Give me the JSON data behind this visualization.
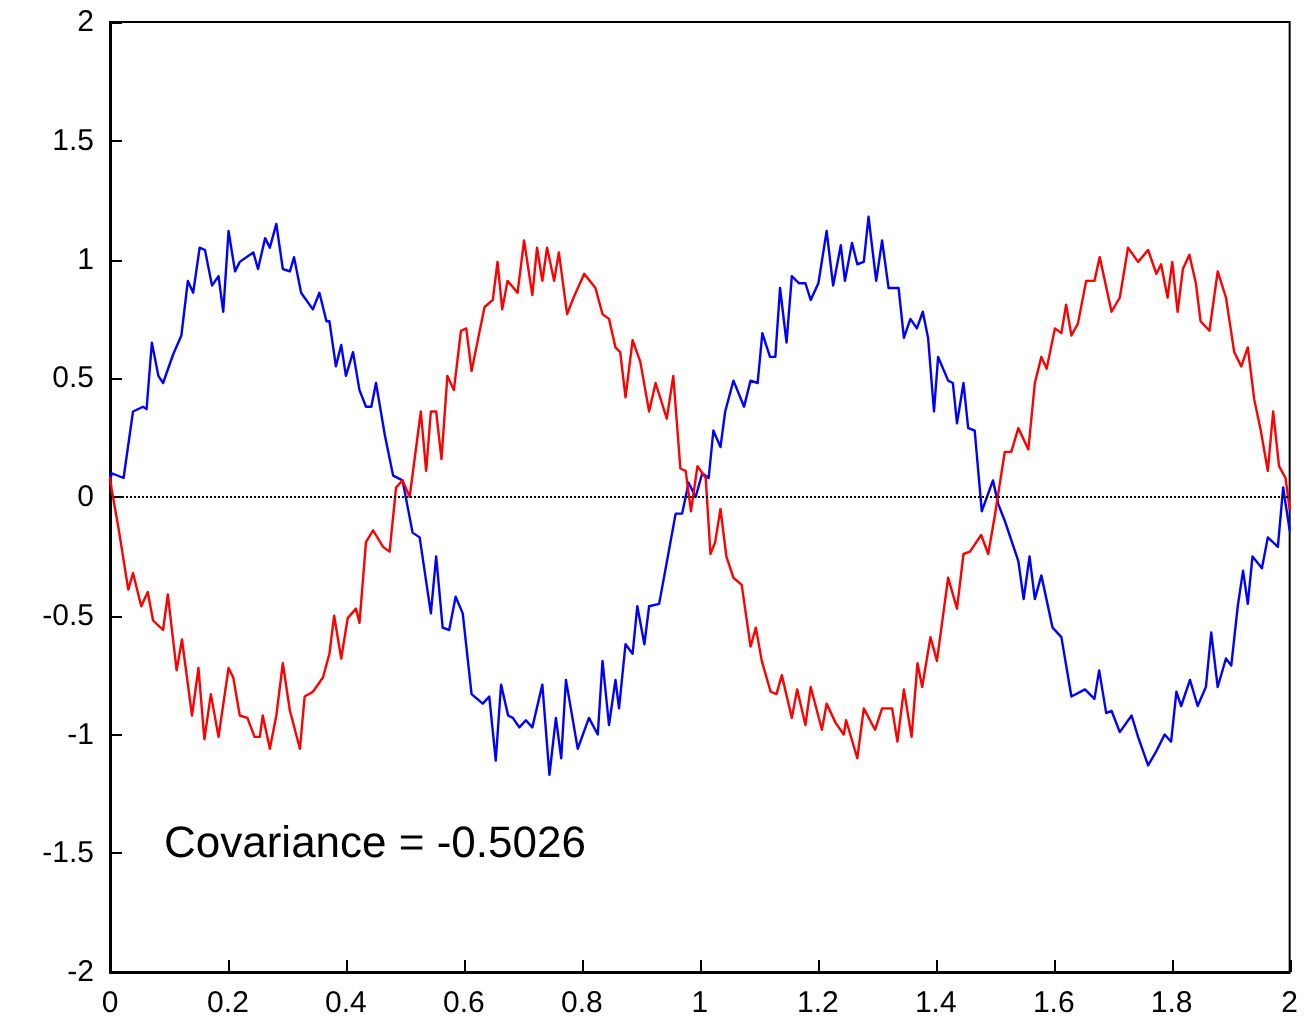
{
  "chart_data": {
    "type": "line",
    "xlim": [
      0,
      2
    ],
    "ylim": [
      -2,
      2
    ],
    "xticks": [
      0,
      0.2,
      0.4,
      0.6,
      0.8,
      1,
      1.2,
      1.4,
      1.6,
      1.8,
      2
    ],
    "yticks": [
      -2,
      -1.5,
      -1,
      -0.5,
      0,
      0.5,
      1,
      1.5,
      2
    ],
    "grid": false,
    "marker": "none",
    "line_style": "solid",
    "ref_lines": [
      {
        "axis": "y",
        "value": 0,
        "label": null,
        "color": "#000000",
        "line_style": "dotted"
      }
    ],
    "annotations": [
      "Covariance = -0.5026"
    ],
    "series": [
      {
        "color": "#0000ff",
        "x": [
          0,
          0.003,
          0.023,
          0.039,
          0.056,
          0.062,
          0.071,
          0.082,
          0.09,
          0.107,
          0.121,
          0.132,
          0.141,
          0.152,
          0.161,
          0.173,
          0.184,
          0.192,
          0.201,
          0.212,
          0.22,
          0.243,
          0.251,
          0.263,
          0.271,
          0.282,
          0.293,
          0.305,
          0.312,
          0.324,
          0.344,
          0.355,
          0.367,
          0.372,
          0.383,
          0.392,
          0.4,
          0.412,
          0.423,
          0.434,
          0.443,
          0.451,
          0.466,
          0.48,
          0.496,
          0.513,
          0.525,
          0.544,
          0.553,
          0.564,
          0.575,
          0.586,
          0.598,
          0.613,
          0.632,
          0.643,
          0.654,
          0.663,
          0.675,
          0.683,
          0.694,
          0.705,
          0.716,
          0.733,
          0.745,
          0.756,
          0.765,
          0.773,
          0.793,
          0.812,
          0.827,
          0.835,
          0.846,
          0.857,
          0.863,
          0.874,
          0.886,
          0.894,
          0.906,
          0.914,
          0.931,
          0.948,
          0.959,
          0.97,
          0.981,
          0.993,
          1.004,
          1.015,
          1.023,
          1.035,
          1.043,
          1.057,
          1.075,
          1.086,
          1.098,
          1.106,
          1.119,
          1.128,
          1.136,
          1.147,
          1.156,
          1.168,
          1.179,
          1.188,
          1.201,
          1.215,
          1.226,
          1.239,
          1.246,
          1.258,
          1.267,
          1.278,
          1.286,
          1.299,
          1.309,
          1.32,
          1.337,
          1.346,
          1.357,
          1.368,
          1.378,
          1.387,
          1.397,
          1.404,
          1.421,
          1.429,
          1.436,
          1.447,
          1.455,
          1.466,
          1.478,
          1.497,
          1.506,
          1.517,
          1.54,
          1.549,
          1.559,
          1.568,
          1.579,
          1.598,
          1.613,
          1.63,
          1.653,
          1.669,
          1.677,
          1.689,
          1.698,
          1.712,
          1.732,
          1.743,
          1.76,
          1.774,
          1.788,
          1.799,
          1.808,
          1.816,
          1.831,
          1.844,
          1.858,
          1.867,
          1.878,
          1.892,
          1.901,
          1.912,
          1.921,
          1.929,
          1.937,
          1.953,
          1.963,
          1.98,
          1.989,
          2
        ],
        "values": [
          0.07,
          0.1,
          0.08,
          0.36,
          0.38,
          0.37,
          0.65,
          0.51,
          0.48,
          0.6,
          0.68,
          0.91,
          0.86,
          1.05,
          1.04,
          0.89,
          0.93,
          0.78,
          1.12,
          0.95,
          0.99,
          1.03,
          0.96,
          1.09,
          1.05,
          1.15,
          0.96,
          0.95,
          1.01,
          0.86,
          0.79,
          0.86,
          0.74,
          0.74,
          0.55,
          0.64,
          0.51,
          0.61,
          0.45,
          0.38,
          0.38,
          0.48,
          0.26,
          0.09,
          0.07,
          -0.15,
          -0.17,
          -0.49,
          -0.25,
          -0.55,
          -0.56,
          -0.42,
          -0.49,
          -0.83,
          -0.87,
          -0.84,
          -1.11,
          -0.79,
          -0.92,
          -0.93,
          -0.97,
          -0.94,
          -0.97,
          -0.79,
          -1.17,
          -0.93,
          -1.1,
          -0.77,
          -1.06,
          -0.93,
          -1,
          -0.69,
          -0.96,
          -0.77,
          -0.89,
          -0.62,
          -0.66,
          -0.46,
          -0.62,
          -0.46,
          -0.45,
          -0.22,
          -0.07,
          -0.07,
          0.06,
          0,
          0.1,
          0.08,
          0.28,
          0.21,
          0.36,
          0.49,
          0.38,
          0.49,
          0.48,
          0.69,
          0.59,
          0.59,
          0.88,
          0.65,
          0.93,
          0.9,
          0.9,
          0.83,
          0.9,
          1.12,
          0.89,
          1.06,
          0.91,
          1.07,
          0.98,
          0.99,
          1.18,
          0.91,
          1.08,
          0.88,
          0.88,
          0.67,
          0.75,
          0.71,
          0.78,
          0.67,
          0.36,
          0.59,
          0.49,
          0.48,
          0.31,
          0.48,
          0.29,
          0.28,
          -0.06,
          0.07,
          -0.03,
          -0.1,
          -0.27,
          -0.43,
          -0.25,
          -0.43,
          -0.33,
          -0.55,
          -0.59,
          -0.84,
          -0.81,
          -0.85,
          -0.73,
          -0.91,
          -0.9,
          -0.99,
          -0.92,
          -1.01,
          -1.13,
          -1.07,
          -1,
          -1.03,
          -0.82,
          -0.88,
          -0.77,
          -0.88,
          -0.8,
          -0.57,
          -0.8,
          -0.68,
          -0.71,
          -0.46,
          -0.31,
          -0.45,
          -0.25,
          -0.3,
          -0.17,
          -0.21,
          0.04,
          -0.14
        ]
      },
      {
        "color": "#ff0000",
        "x": [
          0,
          0.003,
          0.015,
          0.031,
          0.039,
          0.053,
          0.064,
          0.073,
          0.09,
          0.098,
          0.113,
          0.122,
          0.139,
          0.15,
          0.16,
          0.171,
          0.184,
          0.201,
          0.209,
          0.22,
          0.233,
          0.245,
          0.254,
          0.259,
          0.271,
          0.282,
          0.293,
          0.305,
          0.322,
          0.33,
          0.344,
          0.361,
          0.372,
          0.38,
          0.392,
          0.403,
          0.417,
          0.423,
          0.434,
          0.446,
          0.463,
          0.474,
          0.485,
          0.496,
          0.508,
          0.527,
          0.536,
          0.544,
          0.553,
          0.562,
          0.572,
          0.583,
          0.595,
          0.604,
          0.613,
          0.626,
          0.635,
          0.649,
          0.657,
          0.665,
          0.674,
          0.691,
          0.702,
          0.716,
          0.724,
          0.733,
          0.741,
          0.753,
          0.761,
          0.775,
          0.786,
          0.804,
          0.823,
          0.835,
          0.846,
          0.857,
          0.865,
          0.874,
          0.886,
          0.899,
          0.914,
          0.925,
          0.944,
          0.955,
          0.967,
          0.976,
          0.985,
          0.996,
          1.01,
          1.018,
          1.026,
          1.035,
          1.045,
          1.057,
          1.071,
          1.086,
          1.095,
          1.105,
          1.12,
          1.13,
          1.139,
          1.156,
          1.165,
          1.179,
          1.188,
          1.207,
          1.215,
          1.23,
          1.244,
          1.248,
          1.267,
          1.278,
          1.297,
          1.309,
          1.326,
          1.335,
          1.346,
          1.359,
          1.369,
          1.377,
          1.391,
          1.402,
          1.421,
          1.436,
          1.447,
          1.458,
          1.477,
          1.489,
          1.5,
          1.517,
          1.528,
          1.54,
          1.557,
          1.568,
          1.579,
          1.588,
          1.602,
          1.613,
          1.621,
          1.63,
          1.641,
          1.655,
          1.669,
          1.678,
          1.698,
          1.712,
          1.726,
          1.743,
          1.76,
          1.774,
          1.782,
          1.793,
          1.801,
          1.81,
          1.819,
          1.83,
          1.841,
          1.849,
          1.864,
          1.878,
          1.892,
          1.906,
          1.918,
          1.929,
          1.94,
          1.951,
          1.963,
          1.972,
          1.982,
          1.993,
          2
        ],
        "values": [
          0.08,
          0.03,
          -0.14,
          -0.39,
          -0.32,
          -0.46,
          -0.4,
          -0.52,
          -0.56,
          -0.41,
          -0.73,
          -0.6,
          -0.92,
          -0.72,
          -1.02,
          -0.83,
          -1.01,
          -0.72,
          -0.76,
          -0.92,
          -0.93,
          -1.01,
          -1.01,
          -0.92,
          -1.06,
          -0.92,
          -0.7,
          -0.9,
          -1.06,
          -0.84,
          -0.82,
          -0.76,
          -0.66,
          -0.5,
          -0.68,
          -0.51,
          -0.47,
          -0.53,
          -0.19,
          -0.14,
          -0.21,
          -0.23,
          0.04,
          0.07,
          0,
          0.36,
          0.11,
          0.36,
          0.36,
          0.16,
          0.51,
          0.45,
          0.7,
          0.71,
          0.53,
          0.69,
          0.8,
          0.83,
          0.99,
          0.79,
          0.91,
          0.86,
          1.08,
          0.85,
          1.05,
          0.91,
          1.05,
          0.91,
          1.03,
          0.77,
          0.84,
          0.94,
          0.88,
          0.77,
          0.75,
          0.63,
          0.61,
          0.42,
          0.66,
          0.57,
          0.36,
          0.48,
          0.33,
          0.51,
          0.12,
          0.11,
          -0.06,
          0.13,
          0.08,
          -0.24,
          -0.19,
          -0.05,
          -0.25,
          -0.34,
          -0.37,
          -0.63,
          -0.55,
          -0.69,
          -0.82,
          -0.83,
          -0.75,
          -0.93,
          -0.81,
          -0.96,
          -0.8,
          -0.98,
          -0.87,
          -0.95,
          -1,
          -0.94,
          -1.1,
          -0.89,
          -0.98,
          -0.89,
          -0.89,
          -1.03,
          -0.81,
          -1.01,
          -0.7,
          -0.8,
          -0.59,
          -0.69,
          -0.34,
          -0.47,
          -0.24,
          -0.23,
          -0.16,
          -0.24,
          -0.08,
          0.19,
          0.19,
          0.29,
          0.2,
          0.48,
          0.59,
          0.54,
          0.71,
          0.69,
          0.81,
          0.68,
          0.73,
          0.91,
          0.91,
          1.01,
          0.78,
          0.84,
          1.05,
          0.99,
          1.04,
          0.94,
          0.98,
          0.84,
          0.99,
          0.78,
          0.96,
          1.02,
          0.9,
          0.74,
          0.7,
          0.95,
          0.84,
          0.61,
          0.55,
          0.63,
          0.41,
          0.28,
          0.11,
          0.36,
          0.13,
          0.08,
          -0.05
        ]
      }
    ]
  }
}
